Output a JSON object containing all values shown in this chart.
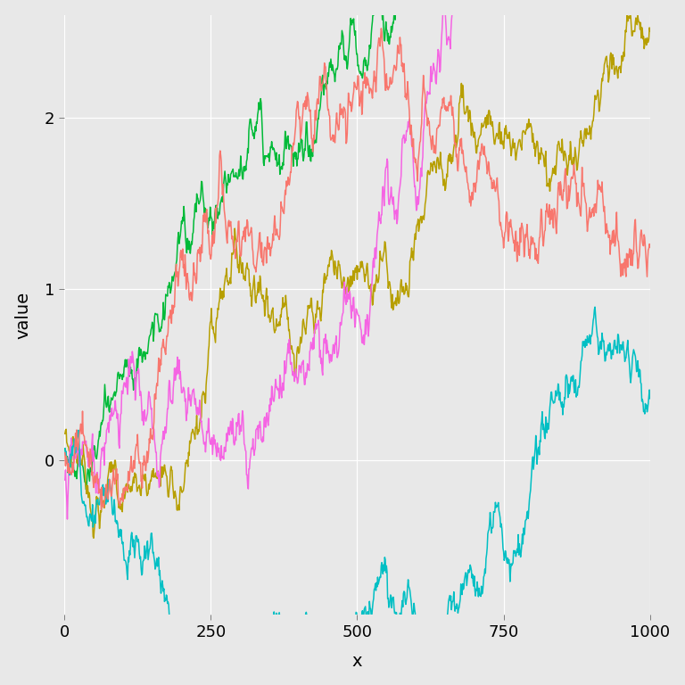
{
  "title": "",
  "xlabel": "x",
  "ylabel": "value",
  "x_min": 0,
  "x_max": 1000,
  "y_min": -0.9,
  "y_max": 2.6,
  "y_ticks": [
    0,
    1,
    2
  ],
  "x_ticks": [
    0,
    250,
    500,
    750,
    1000
  ],
  "background_color": "#E8E8E8",
  "grid_color": "#FFFFFF",
  "line_colors": [
    "#00BA38",
    "#B79F00",
    "#F564E3",
    "#00BFC4",
    "#F8766D"
  ],
  "n_points": 1000,
  "line_width": 1.1,
  "font_size": 13,
  "axis_label_size": 14,
  "line_params": [
    [
      101,
      0.0025,
      0.045,
      0.0
    ],
    [
      202,
      0.002,
      0.045,
      0.05
    ],
    [
      303,
      0.0018,
      0.055,
      -0.12
    ],
    [
      404,
      0.0008,
      0.045,
      0.05
    ],
    [
      505,
      -0.0002,
      0.055,
      0.05
    ]
  ]
}
